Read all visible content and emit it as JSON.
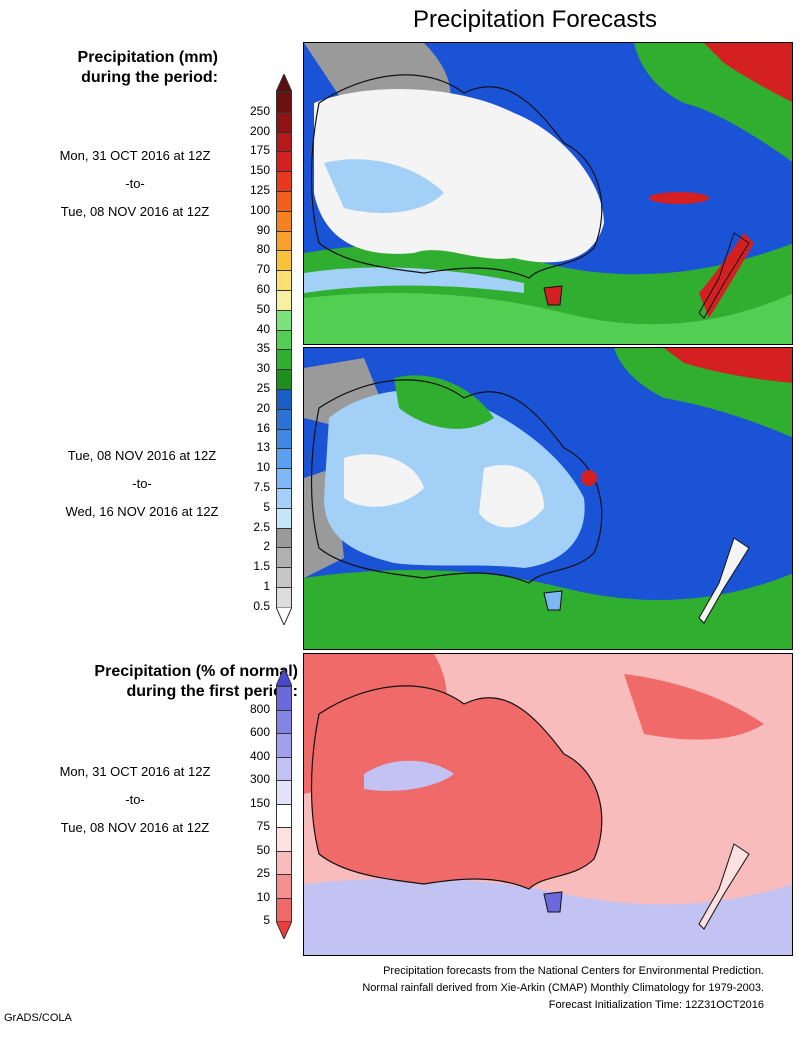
{
  "title": "Precipitation Forecasts",
  "legend_mm": {
    "heading": [
      "Precipitation (mm)",
      "during the period:"
    ],
    "labels": [
      "250",
      "200",
      "175",
      "150",
      "125",
      "100",
      "90",
      "80",
      "70",
      "60",
      "50",
      "40",
      "35",
      "30",
      "25",
      "20",
      "16",
      "13",
      "10",
      "7.5",
      "5",
      "2.5",
      "2",
      "1.5",
      "1",
      "0.5"
    ],
    "colors": [
      "#6b0f0f",
      "#8f1414",
      "#b41a1a",
      "#d42020",
      "#e63a1e",
      "#f2601e",
      "#f5821e",
      "#f7a12a",
      "#f9c23a",
      "#fae070",
      "#f7f0a0",
      "#7de27d",
      "#52cf52",
      "#2fae2f",
      "#1e8f1e",
      "#1a5ec2",
      "#2a72d6",
      "#3e88e4",
      "#5a9ff0",
      "#7db7f4",
      "#a3d0f7",
      "#c6e6fa",
      "#9a9a9a",
      "#b1b1b1",
      "#c6c6c6",
      "#dcdcdc"
    ],
    "cap_top_color": "#5a1010",
    "cap_bottom_color": "#ffffff"
  },
  "legend_pct": {
    "heading": [
      "Precipitation (% of normal)",
      "during the first period:"
    ],
    "labels": [
      "800",
      "600",
      "400",
      "300",
      "150",
      "75",
      "50",
      "25",
      "10",
      "5"
    ],
    "colors": [
      "#6a6adc",
      "#8383e4",
      "#a0a0ec",
      "#c3c3f3",
      "#e2e2f9",
      "#ffffff",
      "#fde0e0",
      "#f9bcbc",
      "#f59090",
      "#f16a6a"
    ],
    "cap_top_color": "#4848d0",
    "cap_bottom_color": "#ee3d3d"
  },
  "periods": [
    {
      "start": "Mon, 31 OCT 2016 at 12Z",
      "sep": "-to-",
      "end": "Tue, 08 NOV 2016 at 12Z"
    },
    {
      "start": "Tue, 08 NOV 2016 at 12Z",
      "sep": "-to-",
      "end": "Wed, 16 NOV 2016 at 12Z"
    },
    {
      "start": "Mon, 31 OCT 2016 at 12Z",
      "sep": "-to-",
      "end": "Tue, 08 NOV 2016 at 12Z"
    }
  ],
  "footer": [
    "Precipitation forecasts from the National Centers for Environmental Prediction.",
    "Normal rainfall derived from Xie-Arkin (CMAP) Monthly Climatology for 1979-2003.",
    "Forecast Initialization Time: 12Z31OCT2016"
  ],
  "credit": "GrADS/COLA",
  "colors": {
    "ocean_rain": "#1a53d6",
    "dry_land": "#f4f4f4",
    "light_rain": "#a3d0f7",
    "green_rain": "#2fae2f",
    "heavy_rain": "#d42020",
    "pct_dry": "#f16a6a",
    "pct_wet": "#c3c3f3"
  }
}
